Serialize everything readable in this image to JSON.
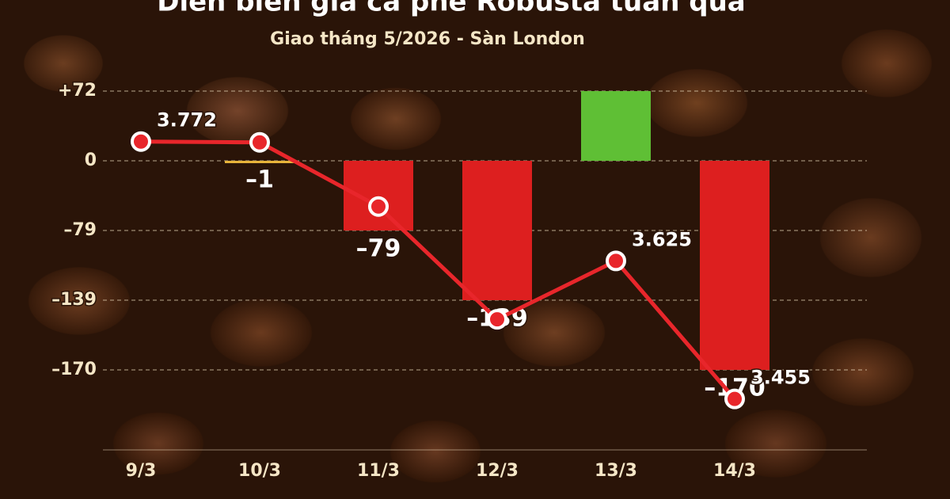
{
  "chart_data": {
    "type": "bar-line",
    "title": "Diễn biến giá cà phê Robusta tuần qua",
    "subtitle": "Giao tháng 5/2026 - Sàn London",
    "categories": [
      "9/3",
      "10/3",
      "11/3",
      "12/3",
      "13/3",
      "14/3"
    ],
    "series": [
      {
        "type": "bar",
        "values": [
          null,
          -1,
          -79,
          -139,
          72,
          -170
        ],
        "value_labels": [
          null,
          "–1",
          "–79",
          "–139",
          null,
          "–170"
        ],
        "colors": [
          null,
          "#e8b43a",
          "#dd1f1f",
          "#dd1f1f",
          "#5fbf35",
          "#dd1f1f"
        ]
      },
      {
        "type": "line",
        "axis": "y2",
        "color": "#e8262b",
        "values": [
          3772,
          3771,
          3692,
          3553,
          3625,
          3455
        ],
        "value_labels": [
          "3.772",
          null,
          null,
          null,
          "3.625",
          "3.455"
        ]
      }
    ],
    "yticks": [
      {
        "value": 72,
        "label": "+72"
      },
      0,
      {
        "value": -79,
        "label": "–79"
      },
      {
        "value": -139,
        "label": "–139"
      },
      {
        "value": -170,
        "label": "–170"
      }
    ],
    "y2lim": [
      3400,
      3800
    ],
    "grid": true
  }
}
